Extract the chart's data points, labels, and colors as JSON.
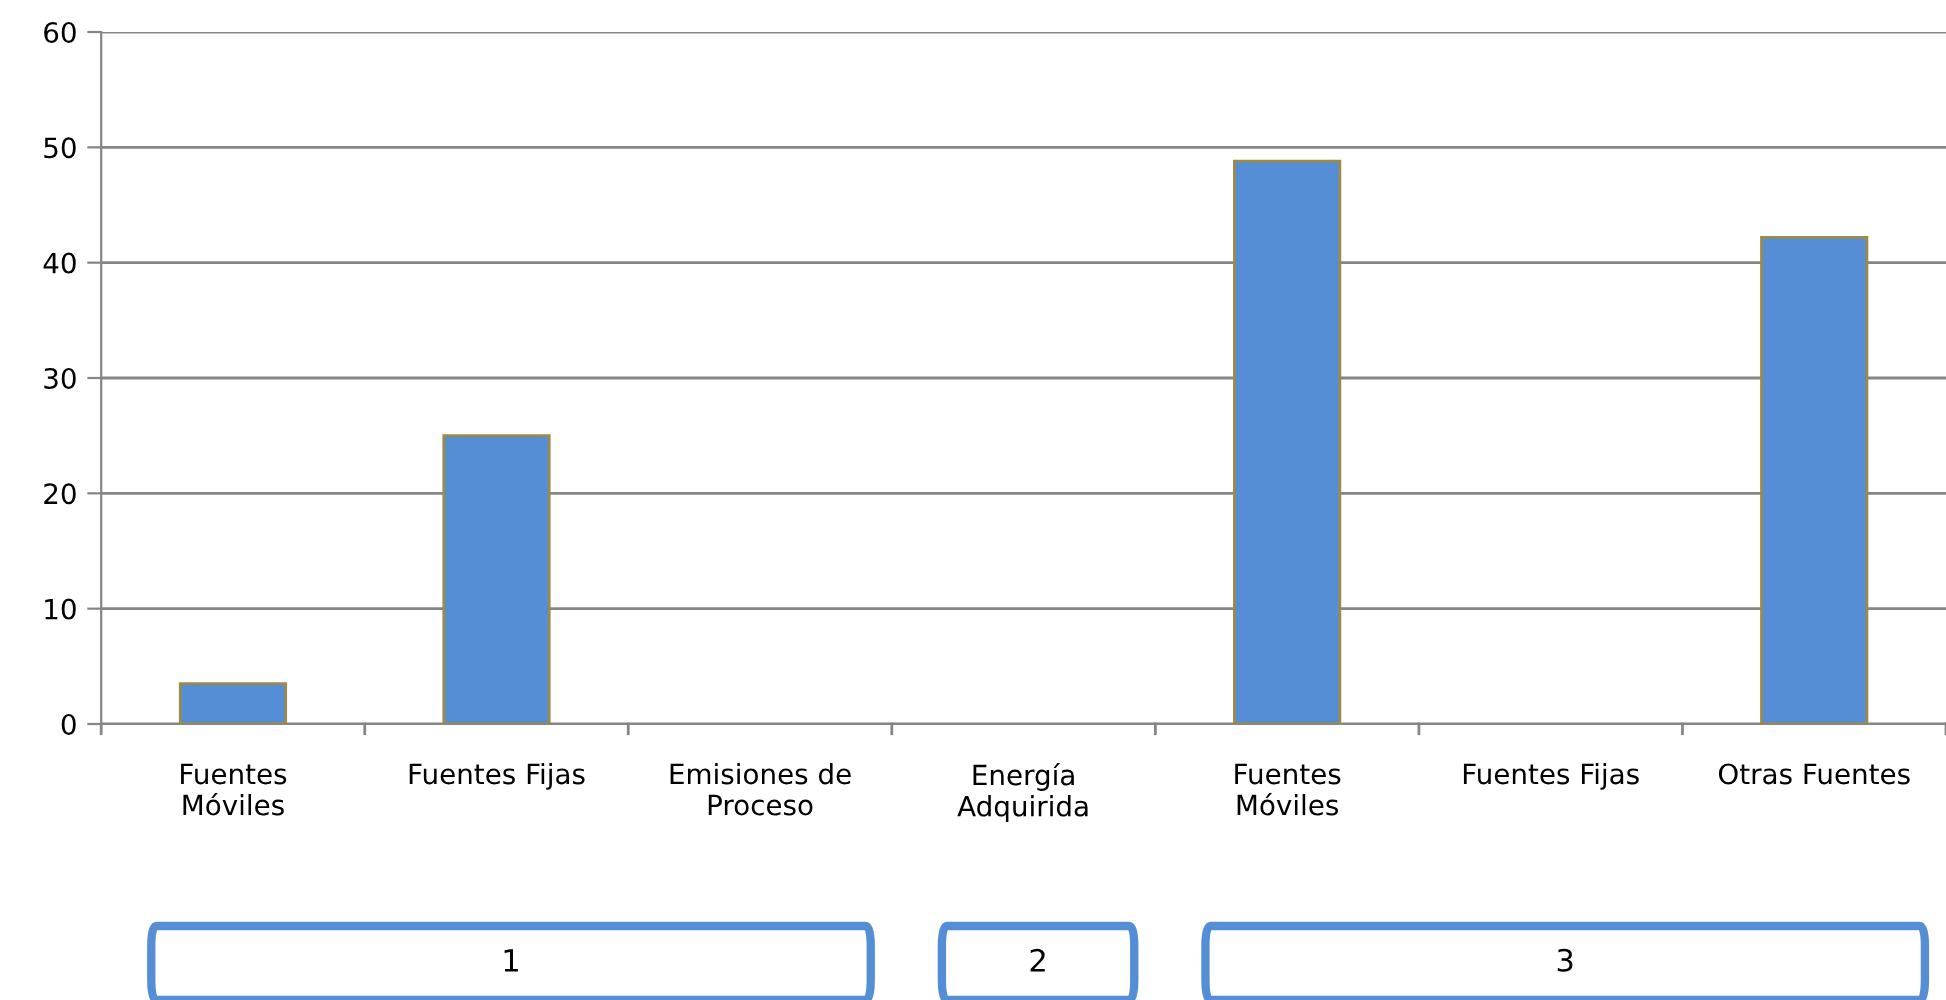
{
  "chart_data": {
    "type": "bar",
    "categories": [
      "Fuentes\nMóviles",
      "Fuentes Fijas",
      "Emisiones de\nProceso",
      "Energía\nAdquirida",
      "Fuentes\nMóviles",
      "Fuentes Fijas",
      "Otras Fuentes"
    ],
    "values": [
      3.5,
      25,
      0,
      0,
      48.8,
      0,
      42.2
    ],
    "color": "#558ed5",
    "ylim": [
      0,
      60
    ],
    "yticks": [
      0,
      10,
      20,
      30,
      40,
      50,
      60
    ],
    "grid": "y",
    "legend": false,
    "annotations": [
      "1",
      "2",
      "3"
    ]
  }
}
